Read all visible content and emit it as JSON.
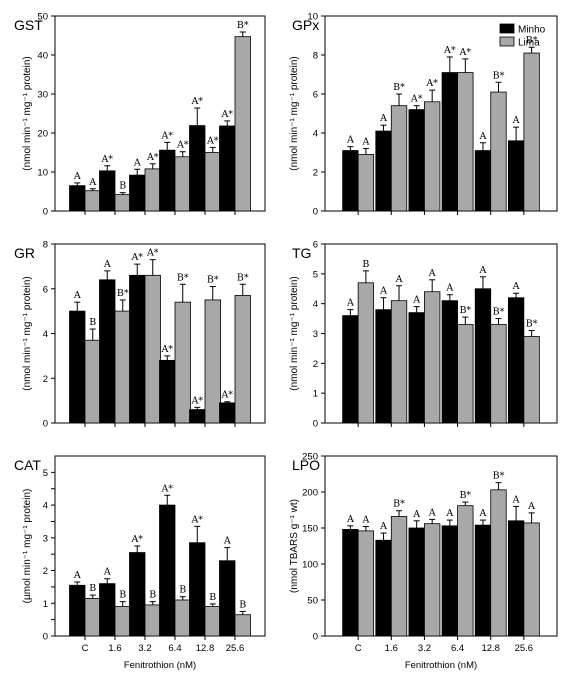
{
  "colors": {
    "minho": "#000000",
    "lima": "#a8a8a8",
    "axis": "#000000"
  },
  "legend": {
    "placement": "top-right",
    "entries": [
      "Minho",
      "Lima"
    ]
  },
  "chart_data": [
    {
      "type": "bar",
      "title": "GST",
      "ylabel": "(nmol min⁻¹ mg⁻¹ protein)",
      "ylim": [
        0,
        50
      ],
      "yticks": [
        0,
        10,
        20,
        30,
        40,
        50
      ],
      "categories": [
        "C",
        "1.6",
        "3.2",
        "6.4",
        "12.8",
        "25.6"
      ],
      "series": [
        {
          "name": "Minho",
          "values": [
            6.5,
            10.3,
            9.2,
            15.6,
            21.9,
            21.8
          ],
          "errors": [
            0.7,
            1.3,
            1.5,
            2.0,
            4.5,
            1.3
          ],
          "labels": [
            "A",
            "A*",
            "A",
            "A*",
            "A*",
            "A*"
          ]
        },
        {
          "name": "Lima",
          "values": [
            5.2,
            4.2,
            10.8,
            13.9,
            15.0,
            44.7
          ],
          "errors": [
            0.5,
            0.5,
            1.3,
            1.3,
            1.3,
            1.2
          ],
          "labels": [
            "A",
            "B",
            "A*",
            "A*",
            "A*",
            "B*"
          ]
        }
      ]
    },
    {
      "type": "bar",
      "title": "GPx",
      "ylabel": "(nmol min⁻¹ mg⁻¹ protein)",
      "ylim": [
        0,
        10
      ],
      "yticks": [
        0,
        2,
        4,
        6,
        8,
        10
      ],
      "categories": [
        "C",
        "1.6",
        "3.2",
        "6.4",
        "12.8",
        "25.6"
      ],
      "series": [
        {
          "name": "Minho",
          "values": [
            3.1,
            4.1,
            5.2,
            7.1,
            3.1,
            3.6
          ],
          "errors": [
            0.2,
            0.3,
            0.2,
            0.8,
            0.4,
            0.7
          ],
          "labels": [
            "A",
            "A",
            "A*",
            "A*",
            "A",
            "A"
          ]
        },
        {
          "name": "Lima",
          "values": [
            2.9,
            5.4,
            5.6,
            7.1,
            6.1,
            8.1
          ],
          "errors": [
            0.3,
            0.6,
            0.6,
            0.7,
            0.5,
            0.3
          ],
          "labels": [
            "A",
            "B*",
            "A*",
            "A*",
            "B*",
            "B*"
          ]
        }
      ]
    },
    {
      "type": "bar",
      "title": "GR",
      "ylabel": "(nmol min⁻¹ mg⁻¹ protein)",
      "ylim": [
        0,
        8
      ],
      "yticks": [
        0,
        2,
        4,
        6,
        8
      ],
      "categories": [
        "C",
        "1.6",
        "3.2",
        "6.4",
        "12.8",
        "25.6"
      ],
      "series": [
        {
          "name": "Minho",
          "values": [
            5.0,
            6.4,
            6.6,
            2.8,
            0.6,
            0.9
          ],
          "errors": [
            0.4,
            0.4,
            0.5,
            0.2,
            0.1,
            0.05
          ],
          "labels": [
            "A",
            "A",
            "A*",
            "A*",
            "A*",
            "A*"
          ]
        },
        {
          "name": "Lima",
          "values": [
            3.7,
            5.0,
            6.6,
            5.4,
            5.5,
            5.7
          ],
          "errors": [
            0.5,
            0.5,
            0.7,
            0.8,
            0.6,
            0.5
          ],
          "labels": [
            "B",
            "B*",
            "A*",
            "B*",
            "B*",
            "B*"
          ]
        }
      ]
    },
    {
      "type": "bar",
      "title": "TG",
      "ylabel": "(nmol min⁻¹ mg⁻¹ protein)",
      "ylim": [
        0,
        6
      ],
      "yticks": [
        0,
        1,
        2,
        3,
        4,
        5,
        6
      ],
      "categories": [
        "C",
        "1.6",
        "3.2",
        "6.4",
        "12.8",
        "25.6"
      ],
      "series": [
        {
          "name": "Minho",
          "values": [
            3.6,
            3.8,
            3.7,
            4.1,
            4.5,
            4.2
          ],
          "errors": [
            0.2,
            0.4,
            0.2,
            0.2,
            0.4,
            0.15
          ],
          "labels": [
            "A",
            "A",
            "A",
            "A",
            "A",
            "A"
          ]
        },
        {
          "name": "Lima",
          "values": [
            4.7,
            4.1,
            4.4,
            3.3,
            3.3,
            2.9
          ],
          "errors": [
            0.4,
            0.5,
            0.4,
            0.25,
            0.2,
            0.2
          ],
          "labels": [
            "B",
            "A",
            "A",
            "B*",
            "B*",
            "B*"
          ]
        }
      ]
    },
    {
      "type": "bar",
      "title": "CAT",
      "ylabel": "(µmol min⁻¹ mg⁻¹ protein)",
      "ylim": [
        0,
        5.5
      ],
      "yticks": [
        0,
        0.5,
        1,
        1.5,
        2,
        2.5,
        3,
        3.5,
        4,
        4.5,
        5
      ],
      "tick_labels": [
        "0",
        "",
        "1",
        "",
        "2",
        "",
        "3",
        "",
        "4",
        "",
        "5"
      ],
      "categories": [
        "C",
        "1.6",
        "3.2",
        "6.4",
        "12.8",
        "25.6"
      ],
      "xlabel": "Fenitrothion (nM)",
      "series": [
        {
          "name": "Minho",
          "values": [
            1.55,
            1.6,
            2.55,
            4.0,
            2.85,
            2.3
          ],
          "errors": [
            0.1,
            0.15,
            0.2,
            0.3,
            0.5,
            0.4
          ],
          "labels": [
            "A",
            "A",
            "A*",
            "A*",
            "A*",
            "A"
          ]
        },
        {
          "name": "Lima",
          "values": [
            1.15,
            0.9,
            0.95,
            1.1,
            0.9,
            0.65
          ],
          "errors": [
            0.1,
            0.15,
            0.1,
            0.1,
            0.08,
            0.1
          ],
          "labels": [
            "B",
            "B",
            "B",
            "B",
            "B",
            "B"
          ]
        }
      ]
    },
    {
      "type": "bar",
      "title": "LPO",
      "ylabel": "(nmol TBARS g⁻¹ wt)",
      "ylim": [
        0,
        250
      ],
      "yticks": [
        0,
        50,
        100,
        150,
        200,
        250
      ],
      "categories": [
        "C",
        "1.6",
        "3.2",
        "6.4",
        "12.8",
        "25.6"
      ],
      "xlabel": "Fenitrothion (nM)",
      "series": [
        {
          "name": "Minho",
          "values": [
            148,
            133,
            150,
            153,
            154,
            160
          ],
          "errors": [
            5,
            10,
            10,
            8,
            7,
            20
          ],
          "labels": [
            "A",
            "A",
            "A",
            "A",
            "A",
            "A"
          ]
        },
        {
          "name": "Lima",
          "values": [
            146,
            166,
            156,
            181,
            203,
            157
          ],
          "errors": [
            6,
            8,
            6,
            5,
            10,
            14
          ],
          "labels": [
            "A",
            "B*",
            "A",
            "B*",
            "B*",
            "A"
          ]
        }
      ]
    }
  ]
}
